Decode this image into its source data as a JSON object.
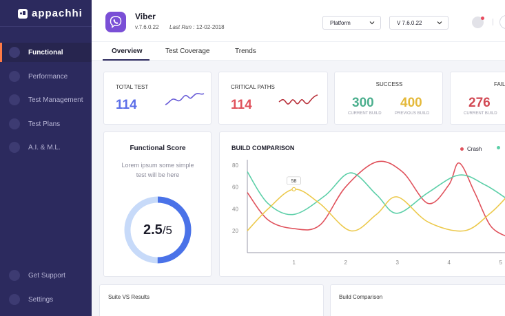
{
  "sidebar": {
    "logo": "appachhi",
    "items": [
      {
        "label": "Functional",
        "active": true
      },
      {
        "label": "Performance"
      },
      {
        "label": "Test Management"
      },
      {
        "label": "Test Plans"
      },
      {
        "label": "A.I. & M.L."
      }
    ],
    "bottom_items": [
      {
        "label": "Get Support"
      },
      {
        "label": "Settings"
      }
    ]
  },
  "header": {
    "app_name": "Viber",
    "app_version": "v.7.6.0.22",
    "last_run_label": "Last Run :",
    "last_run_value": "12-02-2018",
    "platform_select": "Platform",
    "version_select": "V 7.6.0.22"
  },
  "tabs": [
    "Overview",
    "Test Coverage",
    "Trends"
  ],
  "stats": {
    "total_test": {
      "label": "TOTAL TEST",
      "value": "114",
      "color": "#5b6ee8"
    },
    "critical_paths": {
      "label": "CRITICAL PATHS",
      "value": "114",
      "color": "#e0525c"
    },
    "success": {
      "label": "SUCCESS",
      "current": "300",
      "current_label": "CURRENT BUILD",
      "current_color": "#4caf8e",
      "previous": "400",
      "previous_label": "PREVIOUS BUILD",
      "previous_color": "#e4b93a"
    },
    "fail": {
      "label": "FAIL",
      "current": "276",
      "current_label": "CURRENT BUILD",
      "color": "#d24a55"
    }
  },
  "score": {
    "title": "Functional Score",
    "description": "Lorem ipsum some simple test will be here",
    "value": "2.5",
    "out_of": "/5",
    "fraction": 0.5
  },
  "build_comparison": {
    "title": "BUILD COMPARISON",
    "legend": [
      {
        "name": "Crash",
        "color": "#e0525c"
      },
      {
        "name": "",
        "color": "#5ccfa8"
      }
    ],
    "tooltip": "58"
  },
  "chart_data": {
    "type": "line",
    "title": "BUILD COMPARISON",
    "yticks": [
      20,
      40,
      60,
      80
    ],
    "xticks": [
      1,
      2,
      3,
      4,
      5
    ],
    "ylim": [
      0,
      85
    ],
    "xlim": [
      0.1,
      5.1
    ],
    "series": [
      {
        "name": "Crash",
        "color": "#e0525c",
        "points": [
          [
            0.1,
            55
          ],
          [
            0.5,
            30
          ],
          [
            1.0,
            22
          ],
          [
            1.5,
            25
          ],
          [
            2.0,
            60
          ],
          [
            2.6,
            83
          ],
          [
            3.1,
            74
          ],
          [
            3.6,
            45
          ],
          [
            4.0,
            62
          ],
          [
            4.2,
            82
          ],
          [
            4.5,
            55
          ],
          [
            4.8,
            25
          ],
          [
            5.1,
            15
          ]
        ]
      },
      {
        "name": "",
        "color": "#5ccfa8",
        "points": [
          [
            0.1,
            74
          ],
          [
            0.5,
            45
          ],
          [
            1.0,
            35
          ],
          [
            1.6,
            52
          ],
          [
            2.1,
            73
          ],
          [
            2.6,
            53
          ],
          [
            3.0,
            36
          ],
          [
            3.6,
            55
          ],
          [
            4.2,
            71
          ],
          [
            4.7,
            62
          ],
          [
            5.1,
            50
          ]
        ]
      },
      {
        "name": "",
        "color": "#ecc94b",
        "points": [
          [
            0.1,
            20
          ],
          [
            0.5,
            40
          ],
          [
            1.0,
            58
          ],
          [
            1.5,
            45
          ],
          [
            2.1,
            20
          ],
          [
            2.6,
            35
          ],
          [
            3.0,
            51
          ],
          [
            3.6,
            28
          ],
          [
            4.3,
            20
          ],
          [
            4.8,
            36
          ],
          [
            5.1,
            50
          ]
        ]
      }
    ]
  },
  "bottom_cards": {
    "suite_vs_results": "Suite VS Results",
    "build_comparison": "Build Comparison"
  }
}
